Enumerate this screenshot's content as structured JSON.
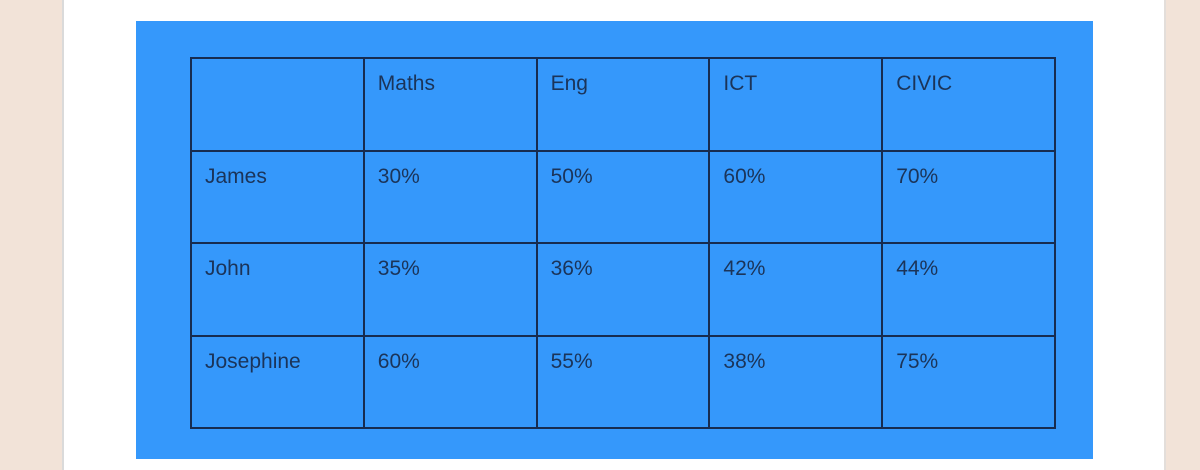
{
  "colors": {
    "app_background": "#f2e3d8",
    "page_background": "#ffffff",
    "panel_blue": "#3598fb",
    "table_border": "#172c50",
    "table_text": "#1b3459"
  },
  "table": {
    "headers": [
      "",
      "Maths",
      "Eng",
      "ICT",
      "CIVIC"
    ],
    "rows": [
      {
        "name": "James",
        "values": [
          "30%",
          "50%",
          "60%",
          "70%"
        ]
      },
      {
        "name": "John",
        "values": [
          "35%",
          "36%",
          "42%",
          "44%"
        ]
      },
      {
        "name": "Josephine",
        "values": [
          "60%",
          "55%",
          "38%",
          "75%"
        ]
      }
    ]
  }
}
